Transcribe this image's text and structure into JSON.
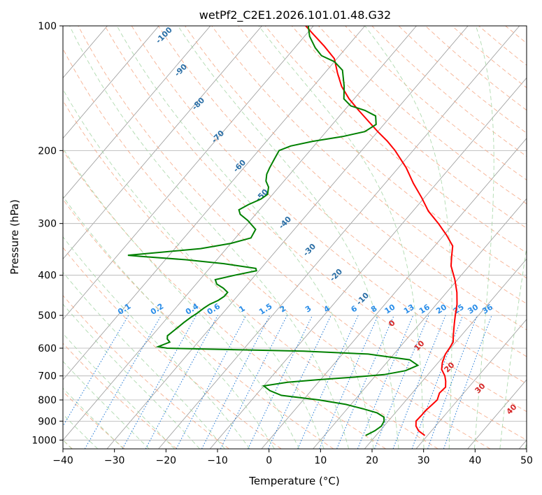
{
  "chart_data": {
    "type": "line",
    "title": "wetPf2_C2E1.2026.101.01.48.G32",
    "xlabel": "Temperature (°C)",
    "ylabel": "Pressure (hPa)",
    "xlim": [
      -40,
      50
    ],
    "ylim": [
      1050,
      100
    ],
    "y_scale": "log",
    "grid": true,
    "x_ticks": [
      -40,
      -30,
      -20,
      -10,
      0,
      10,
      20,
      30,
      40,
      50
    ],
    "y_ticks": [
      100,
      200,
      300,
      400,
      500,
      600,
      700,
      800,
      900,
      1000
    ],
    "skew_deg_per_ln_p": 29.8,
    "series": [
      {
        "color": "#ff0000",
        "points": [
          [
            29.5,
            975
          ],
          [
            27.5,
            950
          ],
          [
            26.2,
            925
          ],
          [
            25.4,
            900
          ],
          [
            25.5,
            870
          ],
          [
            25.5,
            850
          ],
          [
            25.8,
            820
          ],
          [
            26.0,
            800
          ],
          [
            25.3,
            770
          ],
          [
            25.5,
            745
          ],
          [
            24.5,
            720
          ],
          [
            23.5,
            700
          ],
          [
            21.8,
            675
          ],
          [
            20.8,
            650
          ],
          [
            20.0,
            620
          ],
          [
            19.8,
            600
          ],
          [
            19.5,
            580
          ],
          [
            18.5,
            560
          ],
          [
            17.5,
            540
          ],
          [
            16.5,
            520
          ],
          [
            15.5,
            500
          ],
          [
            14.0,
            470
          ],
          [
            12.0,
            440
          ],
          [
            9.5,
            410
          ],
          [
            6.5,
            380
          ],
          [
            5.0,
            360
          ],
          [
            3.5,
            340
          ],
          [
            0.5,
            320
          ],
          [
            -3.0,
            300
          ],
          [
            -7.0,
            280
          ],
          [
            -10.5,
            260
          ],
          [
            -14.5,
            240
          ],
          [
            -18.5,
            220
          ],
          [
            -23.5,
            200
          ],
          [
            -26.5,
            190
          ],
          [
            -30.0,
            180
          ],
          [
            -33.5,
            170
          ],
          [
            -37.2,
            160
          ],
          [
            -41.0,
            150
          ],
          [
            -44.5,
            140
          ],
          [
            -47.5,
            130
          ],
          [
            -50.5,
            120
          ],
          [
            -54.5,
            112
          ],
          [
            -58.5,
            105
          ],
          [
            -61.5,
            100
          ]
        ]
      },
      {
        "color": "#008000",
        "points": [
          [
            18.0,
            975
          ],
          [
            19.0,
            950
          ],
          [
            19.5,
            925
          ],
          [
            19.2,
            900
          ],
          [
            18.5,
            880
          ],
          [
            16.5,
            860
          ],
          [
            13.0,
            840
          ],
          [
            9.0,
            820
          ],
          [
            3.0,
            800
          ],
          [
            -5.0,
            780
          ],
          [
            -8.0,
            760
          ],
          [
            -10.0,
            740
          ],
          [
            -6.0,
            725
          ],
          [
            -0.5,
            715
          ],
          [
            6.0,
            705
          ],
          [
            11.5,
            695
          ],
          [
            15.0,
            680
          ],
          [
            16.5,
            660
          ],
          [
            14.0,
            640
          ],
          [
            5.0,
            620
          ],
          [
            -8.0,
            610
          ],
          [
            -22.0,
            605
          ],
          [
            -35.0,
            600
          ],
          [
            -37.0,
            595
          ],
          [
            -36.0,
            585
          ],
          [
            -35.5,
            580
          ],
          [
            -36.5,
            570
          ],
          [
            -37.0,
            560
          ],
          [
            -36.5,
            540
          ],
          [
            -36.0,
            520
          ],
          [
            -35.5,
            505
          ],
          [
            -35.0,
            495
          ],
          [
            -34.5,
            480
          ],
          [
            -34.0,
            470
          ],
          [
            -33.0,
            460
          ],
          [
            -32.5,
            450
          ],
          [
            -32.5,
            440
          ],
          [
            -34.0,
            430
          ],
          [
            -36.0,
            420
          ],
          [
            -37.0,
            410
          ],
          [
            -34.0,
            400
          ],
          [
            -30.5,
            390
          ],
          [
            -31.0,
            385
          ],
          [
            -38.0,
            375
          ],
          [
            -46.0,
            367
          ],
          [
            -55.5,
            360
          ],
          [
            -58.0,
            358
          ],
          [
            -52.0,
            352
          ],
          [
            -45.0,
            345
          ],
          [
            -40.0,
            335
          ],
          [
            -37.0,
            325
          ],
          [
            -37.5,
            310
          ],
          [
            -40.5,
            295
          ],
          [
            -43.0,
            285
          ],
          [
            -44.0,
            278
          ],
          [
            -43.0,
            270
          ],
          [
            -41.5,
            262
          ],
          [
            -41.0,
            255
          ],
          [
            -42.0,
            245
          ],
          [
            -43.5,
            237
          ],
          [
            -44.5,
            228
          ],
          [
            -45.0,
            220
          ],
          [
            -45.5,
            210
          ],
          [
            -46.0,
            200
          ],
          [
            -44.5,
            195
          ],
          [
            -41.0,
            190
          ],
          [
            -36.0,
            185
          ],
          [
            -32.5,
            180
          ],
          [
            -31.5,
            173
          ],
          [
            -33.0,
            165
          ],
          [
            -36.0,
            160
          ],
          [
            -39.5,
            156
          ],
          [
            -42.0,
            150
          ],
          [
            -44.0,
            140
          ],
          [
            -47.0,
            128
          ],
          [
            -50.0,
            122
          ],
          [
            -53.5,
            118
          ],
          [
            -56.0,
            113
          ],
          [
            -59.0,
            106
          ],
          [
            -61.0,
            100
          ]
        ]
      }
    ],
    "dry_adiabat_labels": [
      "-100",
      "-90",
      "-80",
      "-70",
      "-60",
      "-50",
      "-40",
      "-30",
      "-20",
      "-10",
      "0",
      "10",
      "20",
      "30",
      "40"
    ],
    "mixing_ratio_labels": [
      "0.1",
      "0.2",
      "0.4",
      "0.6",
      "1",
      "1.5",
      "2",
      "3",
      "4",
      "6",
      "8",
      "10",
      "13",
      "16",
      "20",
      "25",
      "30",
      "36"
    ],
    "colors": {
      "isotherm": "#999999",
      "isobar": "#b0b0b0",
      "dry_adiabat": "#f5a37f",
      "moist_adiabat": "#a6d6a6",
      "mixing_ratio": "#1f77d4",
      "dry_label": "#2b6fa6",
      "moist_label": "#d62728",
      "mixing_label": "#2a8de8",
      "temperature": "#ff0000",
      "dewpoint": "#008000"
    }
  }
}
